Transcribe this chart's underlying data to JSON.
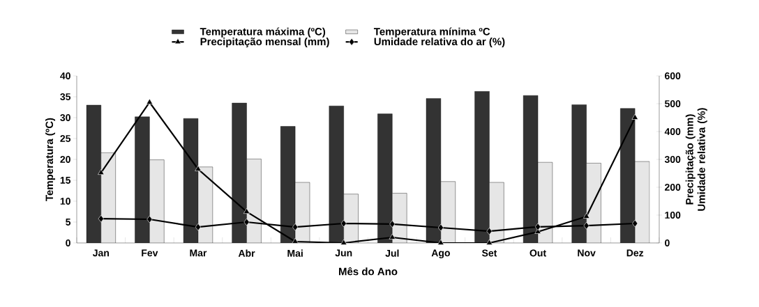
{
  "chart_data": {
    "type": "bar",
    "xlabel": "Mês do Ano",
    "ylabel": "Temperatura (ºC)",
    "y2label": "Precipitação (mm) Umidade relativa (%)",
    "categories": [
      "Jan",
      "Fev",
      "Mar",
      "Abr",
      "Mai",
      "Jun",
      "Jul",
      "Ago",
      "Set",
      "Out",
      "Nov",
      "Dez"
    ],
    "series": [
      {
        "name": "Temperatura máxima (ºC)",
        "color": "#333333",
        "values": [
          33.0,
          30.2,
          29.8,
          33.5,
          27.9,
          32.8,
          30.9,
          34.6,
          36.3,
          35.3,
          33.1,
          32.2
        ]
      },
      {
        "name": "Temperatura mínima ºC",
        "color": "#e6e6e6",
        "values": [
          21.6,
          19.9,
          18.2,
          20.1,
          14.5,
          11.7,
          11.9,
          14.7,
          14.5,
          19.3,
          19.1,
          19.5
        ]
      },
      {
        "name": "Precipitação mensal (mm)",
        "type": "line",
        "axis": "y2",
        "marker": "triangle",
        "color": "#000000",
        "values": [
          252,
          505,
          265,
          112,
          5,
          0,
          20,
          0,
          0,
          40,
          95,
          450
        ]
      },
      {
        "name": "Umidade relativa do ar (%)",
        "type": "line",
        "axis": "y2",
        "marker": "diamond",
        "color": "#000000",
        "values": [
          87,
          85,
          57,
          75,
          57,
          70,
          68,
          55,
          42,
          58,
          62,
          70
        ]
      }
    ],
    "ylim": [
      0,
      40
    ],
    "yticks": [
      0,
      5,
      10,
      15,
      20,
      25,
      30,
      35,
      40
    ],
    "y2lim": [
      0,
      600
    ],
    "y2ticks": [
      0,
      100,
      200,
      300,
      400,
      500,
      600
    ],
    "legend": "top",
    "grid": false
  }
}
